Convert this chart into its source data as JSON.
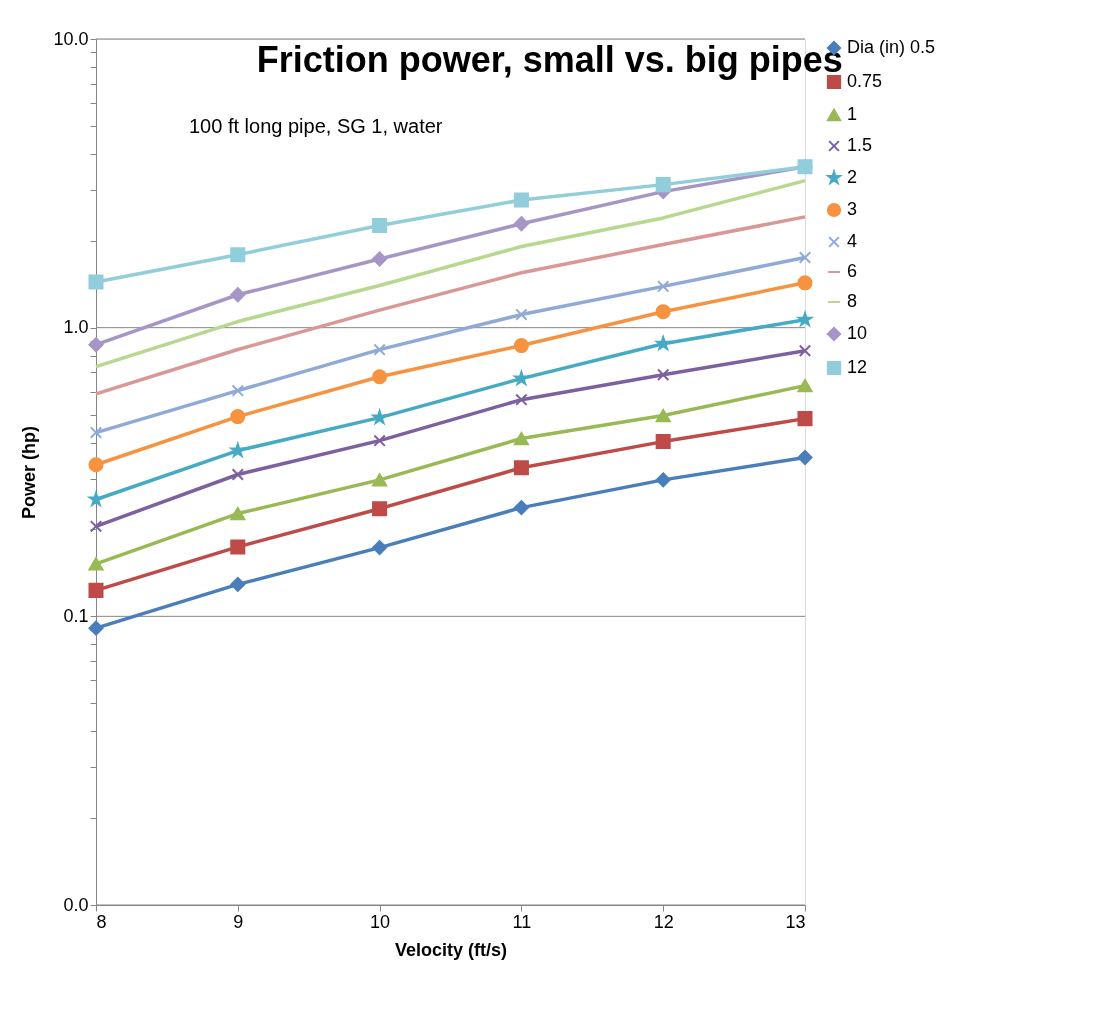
{
  "chart_data": {
    "type": "line",
    "title": "Friction power, small vs. big pipes",
    "subtitle": "100 ft long pipe, SG 1, water",
    "xlabel": "Velocity (ft/s)",
    "ylabel": "Power (hp)",
    "x": [
      8,
      9,
      10,
      11,
      12,
      13
    ],
    "xlim": [
      8,
      13
    ],
    "xticks": [
      8,
      9,
      10,
      11,
      12,
      13
    ],
    "log": "y",
    "ylim": [
      0.01,
      10
    ],
    "yticks": [
      {
        "value": 0.01,
        "label": "0.0"
      },
      {
        "value": 0.02,
        "label": null
      },
      {
        "value": 0.03,
        "label": null
      },
      {
        "value": 0.04,
        "label": null
      },
      {
        "value": 0.05,
        "label": null
      },
      {
        "value": 0.06,
        "label": null
      },
      {
        "value": 0.07,
        "label": null
      },
      {
        "value": 0.08,
        "label": null
      },
      {
        "value": 0.09,
        "label": null
      },
      {
        "value": 0.1,
        "label": "0.1"
      },
      {
        "value": 0.2,
        "label": null
      },
      {
        "value": 0.3,
        "label": null
      },
      {
        "value": 0.4,
        "label": null
      },
      {
        "value": 0.5,
        "label": null
      },
      {
        "value": 0.6,
        "label": null
      },
      {
        "value": 0.7,
        "label": null
      },
      {
        "value": 0.8,
        "label": null
      },
      {
        "value": 0.9,
        "label": null
      },
      {
        "value": 1,
        "label": "1.0"
      },
      {
        "value": 2,
        "label": null
      },
      {
        "value": 3,
        "label": null
      },
      {
        "value": 4,
        "label": null
      },
      {
        "value": 5,
        "label": null
      },
      {
        "value": 6,
        "label": null
      },
      {
        "value": 7,
        "label": null
      },
      {
        "value": 8,
        "label": null
      },
      {
        "value": 9,
        "label": null
      },
      {
        "value": 10,
        "label": "10.0"
      }
    ],
    "grid": "y",
    "legend": "right",
    "series": [
      {
        "name": "Dia (in) 0.5",
        "color": "#4a7ebb",
        "marker": "diamond",
        "values": [
          0.091,
          0.129,
          0.173,
          0.238,
          0.297,
          0.355
        ]
      },
      {
        "name": "0.75",
        "color": "#be4b48",
        "marker": "square",
        "values": [
          0.123,
          0.174,
          0.236,
          0.327,
          0.403,
          0.484
        ]
      },
      {
        "name": "1",
        "color": "#98b954",
        "marker": "triangle",
        "values": [
          0.152,
          0.227,
          0.297,
          0.413,
          0.496,
          0.63
        ]
      },
      {
        "name": "1.5",
        "color": "#7d60a0",
        "marker": "cross",
        "values": [
          0.205,
          0.31,
          0.406,
          0.563,
          0.687,
          0.832
        ]
      },
      {
        "name": "2",
        "color": "#46aac5",
        "marker": "star",
        "values": [
          0.254,
          0.375,
          0.488,
          0.666,
          0.88,
          1.066
        ]
      },
      {
        "name": "3",
        "color": "#f69240",
        "marker": "circle",
        "values": [
          0.335,
          0.492,
          0.676,
          0.867,
          1.136,
          1.43
        ]
      },
      {
        "name": "4",
        "color": "#8faad6",
        "marker": "cross",
        "values": [
          0.433,
          0.605,
          0.839,
          1.11,
          1.39,
          1.75
        ]
      },
      {
        "name": "6",
        "color": "#d99795",
        "marker": "none",
        "values": [
          0.59,
          0.84,
          1.15,
          1.55,
          1.94,
          2.42
        ]
      },
      {
        "name": "8",
        "color": "#b8d78f",
        "marker": "none",
        "values": [
          0.733,
          1.05,
          1.4,
          1.91,
          2.4,
          3.23
        ]
      },
      {
        "name": "10",
        "color": "#a695c5",
        "marker": "diamond",
        "values": [
          0.873,
          1.3,
          1.73,
          2.29,
          2.96,
          3.61
        ]
      },
      {
        "name": "12",
        "color": "#92cddc",
        "marker": "square",
        "values": [
          1.44,
          1.79,
          2.26,
          2.77,
          3.13,
          3.61
        ]
      }
    ]
  }
}
